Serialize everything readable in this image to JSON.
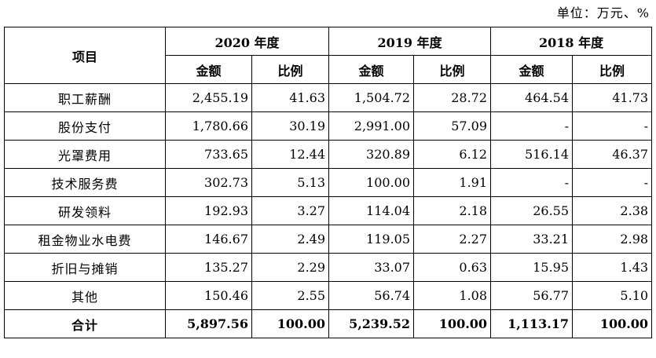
{
  "unit_note": "单位：万元、%",
  "header": {
    "item_label": "项目",
    "years": [
      "2020 年度",
      "2019 年度",
      "2018 年度"
    ],
    "amount_label": "金额",
    "ratio_label": "比例"
  },
  "rows": [
    {
      "label": "职工薪酬",
      "v": [
        "2,455.19",
        "41.63",
        "1,504.72",
        "28.72",
        "464.54",
        "41.73"
      ]
    },
    {
      "label": "股份支付",
      "v": [
        "1,780.66",
        "30.19",
        "2,991.00",
        "57.09",
        "-",
        "-"
      ]
    },
    {
      "label": "光罩费用",
      "v": [
        "733.65",
        "12.44",
        "320.89",
        "6.12",
        "516.14",
        "46.37"
      ]
    },
    {
      "label": "技术服务费",
      "v": [
        "302.73",
        "5.13",
        "100.00",
        "1.91",
        "-",
        "-"
      ]
    },
    {
      "label": "研发领料",
      "v": [
        "192.93",
        "3.27",
        "114.04",
        "2.18",
        "26.55",
        "2.38"
      ]
    },
    {
      "label": "租金物业水电费",
      "v": [
        "146.67",
        "2.49",
        "119.05",
        "2.27",
        "33.21",
        "2.98"
      ]
    },
    {
      "label": "折旧与摊销",
      "v": [
        "135.27",
        "2.29",
        "33.07",
        "0.63",
        "15.95",
        "1.43"
      ]
    },
    {
      "label": "其他",
      "v": [
        "150.46",
        "2.55",
        "56.74",
        "1.08",
        "56.77",
        "5.10"
      ]
    }
  ],
  "total": {
    "label": "合计",
    "v": [
      "5,897.56",
      "100.00",
      "5,239.52",
      "100.00",
      "1,113.17",
      "100.00"
    ]
  }
}
